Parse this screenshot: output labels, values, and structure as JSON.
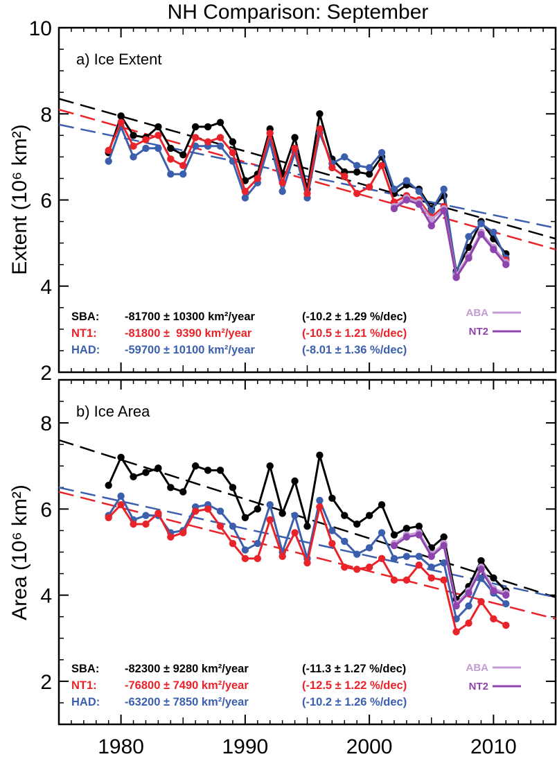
{
  "figure": {
    "title": "NH Comparison: September"
  },
  "chart_data": [
    {
      "type": "line",
      "panel_label": "a) Ice Extent",
      "ylabel": "Extent (10⁶ km²)",
      "xlim": [
        1975,
        2015
      ],
      "ylim": [
        2,
        10
      ],
      "xticks": [
        1980,
        1990,
        2000,
        2010
      ],
      "yticks": [
        2,
        4,
        6,
        8,
        10
      ],
      "series": [
        {
          "name": "SBA",
          "color": "#000000",
          "x": [
            1979,
            1980,
            1981,
            1982,
            1983,
            1984,
            1985,
            1986,
            1987,
            1988,
            1989,
            1990,
            1991,
            1992,
            1993,
            1994,
            1995,
            1996,
            1997,
            1998,
            1999,
            2000,
            2001,
            2002,
            2003,
            2004,
            2005,
            2006,
            2007,
            2008,
            2009,
            2010,
            2011
          ],
          "values": [
            7.1,
            7.95,
            7.5,
            7.45,
            7.7,
            7.2,
            7.05,
            7.7,
            7.7,
            7.8,
            7.35,
            6.45,
            6.6,
            7.65,
            6.6,
            7.45,
            6.25,
            8.0,
            6.95,
            6.65,
            6.65,
            6.6,
            7.0,
            6.15,
            6.35,
            6.25,
            5.8,
            6.1,
            4.35,
            4.9,
            5.5,
            5.1,
            4.75
          ],
          "trend": {
            "slope_km2_per_year": -81700,
            "err_km2_per_year": 10300,
            "pct_per_dec": -10.2,
            "pct_err": 1.29
          },
          "trend_line": {
            "x": [
              1975,
              2015
            ],
            "y": [
              8.35,
              5.1
            ]
          }
        },
        {
          "name": "NT1",
          "color": "#e8232a",
          "x": [
            1979,
            1980,
            1981,
            1982,
            1983,
            1984,
            1985,
            1986,
            1987,
            1988,
            1989,
            1990,
            1991,
            1992,
            1993,
            1994,
            1995,
            1996,
            1997,
            1998,
            1999,
            2000,
            2001,
            2002,
            2003,
            2004,
            2005,
            2006,
            2007,
            2008,
            2009,
            2010,
            2011
          ],
          "values": [
            7.15,
            7.8,
            7.25,
            7.4,
            7.5,
            6.95,
            6.8,
            7.45,
            7.35,
            7.45,
            7.1,
            6.2,
            6.5,
            7.55,
            6.4,
            7.2,
            6.15,
            7.65,
            6.75,
            6.55,
            6.15,
            6.3,
            6.8,
            5.95,
            6.1,
            6.0,
            5.6,
            5.85,
            4.25,
            4.7,
            5.25,
            4.85,
            4.6
          ],
          "trend": {
            "slope_km2_per_year": -81800,
            "err_km2_per_year": 9390,
            "pct_per_dec": -10.5,
            "pct_err": 1.21
          },
          "trend_line": {
            "x": [
              1975,
              2015
            ],
            "y": [
              8.1,
              4.85
            ]
          }
        },
        {
          "name": "HAD",
          "color": "#3b5fad",
          "x": [
            1979,
            1980,
            1981,
            1982,
            1983,
            1984,
            1985,
            1986,
            1987,
            1988,
            1989,
            1990,
            1991,
            1992,
            1993,
            1994,
            1995,
            1996,
            1997,
            1998,
            1999,
            2000,
            2001,
            2002,
            2003,
            2004,
            2005,
            2006,
            2007,
            2008,
            2009,
            2010,
            2011
          ],
          "values": [
            6.9,
            7.7,
            7.0,
            7.2,
            7.2,
            6.6,
            6.6,
            7.25,
            7.25,
            7.25,
            6.9,
            6.05,
            6.4,
            7.35,
            6.2,
            7.1,
            6.05,
            7.55,
            6.85,
            7.0,
            6.8,
            6.75,
            7.1,
            6.25,
            6.45,
            6.2,
            5.75,
            6.25,
            4.3,
            5.15,
            5.45,
            5.25,
            4.65
          ],
          "trend": {
            "slope_km2_per_year": -59700,
            "err_km2_per_year": 10100,
            "pct_per_dec": -8.01,
            "pct_err": 1.36
          },
          "trend_line": {
            "x": [
              1975,
              2015
            ],
            "y": [
              7.75,
              5.35
            ]
          }
        },
        {
          "name": "ABA",
          "color": "#c39bd3",
          "x": [
            2002,
            2003,
            2004,
            2005,
            2006,
            2007,
            2008,
            2009,
            2010,
            2011
          ],
          "values": [
            5.85,
            6.05,
            5.95,
            5.55,
            5.8,
            4.25,
            4.7,
            5.25,
            4.9,
            4.55
          ]
        },
        {
          "name": "NT2",
          "color": "#8e44ad",
          "x": [
            2002,
            2003,
            2004,
            2005,
            2006,
            2007,
            2008,
            2009,
            2010,
            2011
          ],
          "values": [
            5.8,
            6.0,
            5.9,
            5.4,
            5.75,
            4.2,
            4.65,
            5.2,
            4.85,
            4.5
          ]
        }
      ],
      "stats_text": [
        {
          "name": "SBA:",
          "color": "#000000",
          "value": "-81700 ± 10300 km²/year",
          "pct": "(-10.2 ± 1.29 %/dec)"
        },
        {
          "name": "NT1:",
          "color": "#e8232a",
          "value": "-81800 ±  9390 km²/year",
          "pct": "(-10.5 ± 1.21 %/dec)"
        },
        {
          "name": "HAD:",
          "color": "#3b5fad",
          "value": "-59700 ± 10100 km²/year",
          "pct": "(-8.01 ± 1.36 %/dec)"
        }
      ],
      "legend": [
        {
          "name": "ABA",
          "color": "#c39bd3"
        },
        {
          "name": "NT2",
          "color": "#8e44ad"
        }
      ]
    },
    {
      "type": "line",
      "panel_label": "b) Ice Area",
      "ylabel": "Area (10⁶ km²)",
      "xlim": [
        1975,
        2015
      ],
      "ylim": [
        1,
        9
      ],
      "xticks": [
        1980,
        1990,
        2000,
        2010
      ],
      "yticks": [
        2,
        4,
        6,
        8
      ],
      "series": [
        {
          "name": "SBA",
          "color": "#000000",
          "x": [
            1979,
            1980,
            1981,
            1982,
            1983,
            1984,
            1985,
            1986,
            1987,
            1988,
            1989,
            1990,
            1991,
            1992,
            1993,
            1994,
            1995,
            1996,
            1997,
            1998,
            1999,
            2000,
            2001,
            2002,
            2003,
            2004,
            2005,
            2006,
            2007,
            2008,
            2009,
            2010,
            2011
          ],
          "values": [
            6.55,
            7.2,
            6.75,
            6.85,
            6.95,
            6.5,
            6.4,
            7.0,
            6.9,
            6.9,
            6.5,
            5.8,
            6.0,
            7.0,
            5.9,
            6.65,
            5.6,
            7.25,
            6.25,
            5.85,
            5.65,
            5.85,
            6.1,
            5.4,
            5.55,
            5.6,
            5.1,
            5.35,
            3.9,
            4.2,
            4.8,
            4.4,
            4.1
          ],
          "trend": {
            "slope_km2_per_year": -82300,
            "err_km2_per_year": 9280,
            "pct_per_dec": -11.3,
            "pct_err": 1.27
          },
          "trend_line": {
            "x": [
              1975,
              2015
            ],
            "y": [
              7.6,
              3.95
            ]
          }
        },
        {
          "name": "NT1",
          "color": "#e8232a",
          "x": [
            1979,
            1980,
            1981,
            1982,
            1983,
            1984,
            1985,
            1986,
            1987,
            1988,
            1989,
            1990,
            1991,
            1992,
            1993,
            1994,
            1995,
            1996,
            1997,
            1998,
            1999,
            2000,
            2001,
            2002,
            2003,
            2004,
            2005,
            2006,
            2007,
            2008,
            2009,
            2010,
            2011
          ],
          "values": [
            5.8,
            6.1,
            5.65,
            5.65,
            5.9,
            5.35,
            5.45,
            5.95,
            6.0,
            5.6,
            5.2,
            4.85,
            4.85,
            5.75,
            4.9,
            5.45,
            4.75,
            6.05,
            5.2,
            4.65,
            4.6,
            4.65,
            4.85,
            4.35,
            4.35,
            4.7,
            4.4,
            4.35,
            3.15,
            3.35,
            3.85,
            3.45,
            3.3
          ],
          "trend": {
            "slope_km2_per_year": -76800,
            "err_km2_per_year": 7490,
            "pct_per_dec": -12.5,
            "pct_err": 1.22
          },
          "trend_line": {
            "x": [
              1975,
              2015
            ],
            "y": [
              6.4,
              3.45
            ]
          }
        },
        {
          "name": "HAD",
          "color": "#3b5fad",
          "x": [
            1979,
            1980,
            1981,
            1982,
            1983,
            1984,
            1985,
            1986,
            1987,
            1988,
            1989,
            1990,
            1991,
            1992,
            1993,
            1994,
            1995,
            1996,
            1997,
            1998,
            1999,
            2000,
            2001,
            2002,
            2003,
            2004,
            2005,
            2006,
            2007,
            2008,
            2009,
            2010,
            2011
          ],
          "values": [
            5.85,
            6.3,
            5.75,
            5.85,
            5.85,
            5.45,
            5.5,
            6.05,
            6.1,
            5.95,
            5.6,
            5.05,
            5.2,
            6.1,
            5.0,
            5.85,
            4.85,
            6.2,
            5.5,
            5.25,
            4.95,
            5.1,
            5.45,
            4.85,
            4.9,
            4.9,
            4.65,
            4.75,
            3.45,
            3.75,
            4.4,
            4.05,
            3.8
          ],
          "trend": {
            "slope_km2_per_year": -63200,
            "err_km2_per_year": 7850,
            "pct_per_dec": -10.2,
            "pct_err": 1.26
          },
          "trend_line": {
            "x": [
              1975,
              2015
            ],
            "y": [
              6.5,
              3.95
            ]
          }
        },
        {
          "name": "ABA",
          "color": "#c39bd3",
          "x": [
            2002,
            2003,
            2004,
            2005,
            2006,
            2007,
            2008,
            2009,
            2010,
            2011
          ],
          "values": [
            5.2,
            5.4,
            5.45,
            4.95,
            5.2,
            3.8,
            4.1,
            4.65,
            4.15,
            4.05
          ]
        },
        {
          "name": "NT2",
          "color": "#8e44ad",
          "x": [
            2002,
            2003,
            2004,
            2005,
            2006,
            2007,
            2008,
            2009,
            2010,
            2011
          ],
          "values": [
            5.15,
            5.35,
            5.4,
            4.9,
            5.15,
            3.75,
            4.05,
            4.6,
            4.1,
            4.0
          ]
        }
      ],
      "stats_text": [
        {
          "name": "SBA:",
          "color": "#000000",
          "value": "-82300 ± 9280 km²/year",
          "pct": "(-11.3 ± 1.27 %/dec)"
        },
        {
          "name": "NT1:",
          "color": "#e8232a",
          "value": "-76800 ± 7490 km²/year",
          "pct": "(-12.5 ± 1.22 %/dec)"
        },
        {
          "name": "HAD:",
          "color": "#3b5fad",
          "value": "-63200 ± 7850 km²/year",
          "pct": "(-10.2 ± 1.26 %/dec)"
        }
      ],
      "legend": [
        {
          "name": "ABA",
          "color": "#c39bd3"
        },
        {
          "name": "NT2",
          "color": "#8e44ad"
        }
      ]
    }
  ]
}
